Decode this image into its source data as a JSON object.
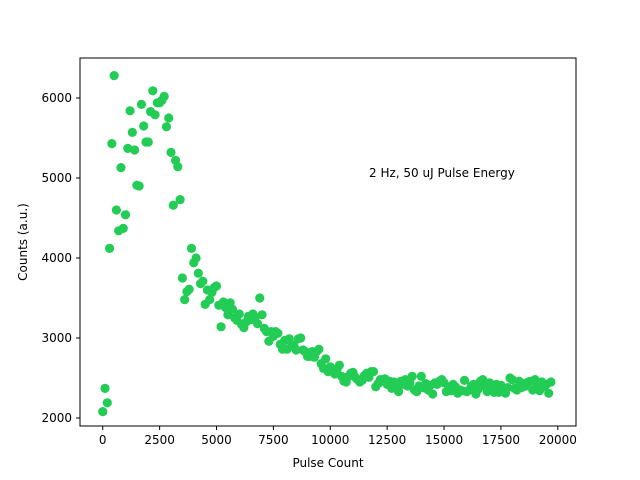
{
  "chart_data": {
    "type": "scatter",
    "title": "",
    "xlabel": "Pulse Count",
    "ylabel": "Counts (a.u.)",
    "annotation": "2 Hz, 50 uJ Pulse Energy",
    "xlim": [
      -1000,
      20800
    ],
    "ylim": [
      1900,
      6500
    ],
    "xticks": [
      0,
      2500,
      5000,
      7500,
      10000,
      12500,
      15000,
      17500,
      20000
    ],
    "yticks": [
      2000,
      3000,
      4000,
      5000,
      6000
    ],
    "grid": false,
    "marker_color": "#22cc55",
    "points": [
      [
        0,
        2080
      ],
      [
        100,
        2370
      ],
      [
        200,
        2190
      ],
      [
        300,
        4120
      ],
      [
        400,
        5430
      ],
      [
        500,
        6280
      ],
      [
        600,
        4600
      ],
      [
        700,
        4340
      ],
      [
        800,
        5130
      ],
      [
        900,
        4370
      ],
      [
        1000,
        4540
      ],
      [
        1100,
        5370
      ],
      [
        1200,
        5840
      ],
      [
        1300,
        5570
      ],
      [
        1400,
        5350
      ],
      [
        1500,
        4910
      ],
      [
        1600,
        4900
      ],
      [
        1700,
        5920
      ],
      [
        1800,
        5650
      ],
      [
        1900,
        5450
      ],
      [
        2000,
        5450
      ],
      [
        2100,
        5830
      ],
      [
        2200,
        6090
      ],
      [
        2300,
        5790
      ],
      [
        2400,
        5940
      ],
      [
        2500,
        5940
      ],
      [
        2600,
        5970
      ],
      [
        2700,
        6020
      ],
      [
        2800,
        5640
      ],
      [
        2900,
        5750
      ],
      [
        3000,
        5320
      ],
      [
        3100,
        4660
      ],
      [
        3200,
        5220
      ],
      [
        3300,
        5140
      ],
      [
        3400,
        4730
      ],
      [
        3500,
        3750
      ],
      [
        3600,
        3480
      ],
      [
        3700,
        3580
      ],
      [
        3800,
        3610
      ],
      [
        3900,
        4120
      ],
      [
        4000,
        3940
      ],
      [
        4100,
        4000
      ],
      [
        4200,
        3810
      ],
      [
        4300,
        3680
      ],
      [
        4400,
        3710
      ],
      [
        4500,
        3420
      ],
      [
        4600,
        3600
      ],
      [
        4700,
        3480
      ],
      [
        4800,
        3570
      ],
      [
        4900,
        3630
      ],
      [
        5000,
        3650
      ],
      [
        5100,
        3410
      ],
      [
        5200,
        3140
      ],
      [
        5300,
        3450
      ],
      [
        5400,
        3380
      ],
      [
        5500,
        3290
      ],
      [
        5600,
        3440
      ],
      [
        5700,
        3360
      ],
      [
        5800,
        3250
      ],
      [
        5900,
        3220
      ],
      [
        6000,
        3300
      ],
      [
        6100,
        3170
      ],
      [
        6200,
        3130
      ],
      [
        6300,
        3200
      ],
      [
        6400,
        3270
      ],
      [
        6500,
        3230
      ],
      [
        6600,
        3300
      ],
      [
        6700,
        3260
      ],
      [
        6800,
        3180
      ],
      [
        6900,
        3500
      ],
      [
        7000,
        3290
      ],
      [
        7100,
        3120
      ],
      [
        7200,
        3080
      ],
      [
        7300,
        2960
      ],
      [
        7400,
        3080
      ],
      [
        7500,
        3020
      ],
      [
        7600,
        3080
      ],
      [
        7700,
        3060
      ],
      [
        7800,
        2920
      ],
      [
        7900,
        2860
      ],
      [
        8000,
        2970
      ],
      [
        8100,
        2860
      ],
      [
        8200,
        2990
      ],
      [
        8300,
        2900
      ],
      [
        8400,
        2910
      ],
      [
        8500,
        2850
      ],
      [
        8600,
        2990
      ],
      [
        8700,
        3000
      ],
      [
        8800,
        2850
      ],
      [
        8900,
        2830
      ],
      [
        9000,
        2770
      ],
      [
        9100,
        2770
      ],
      [
        9200,
        2830
      ],
      [
        9300,
        2760
      ],
      [
        9400,
        2830
      ],
      [
        9500,
        2860
      ],
      [
        9600,
        2680
      ],
      [
        9700,
        2620
      ],
      [
        9800,
        2740
      ],
      [
        9900,
        2580
      ],
      [
        10000,
        2640
      ],
      [
        10100,
        2590
      ],
      [
        10200,
        2550
      ],
      [
        10300,
        2610
      ],
      [
        10400,
        2660
      ],
      [
        10500,
        2520
      ],
      [
        10600,
        2460
      ],
      [
        10700,
        2450
      ],
      [
        10800,
        2520
      ],
      [
        10900,
        2560
      ],
      [
        11000,
        2570
      ],
      [
        11100,
        2510
      ],
      [
        11200,
        2480
      ],
      [
        11300,
        2450
      ],
      [
        11400,
        2470
      ],
      [
        11500,
        2530
      ],
      [
        11600,
        2560
      ],
      [
        11700,
        2510
      ],
      [
        11800,
        2580
      ],
      [
        11900,
        2580
      ],
      [
        12000,
        2390
      ],
      [
        12100,
        2430
      ],
      [
        12200,
        2480
      ],
      [
        12300,
        2460
      ],
      [
        12400,
        2490
      ],
      [
        12500,
        2420
      ],
      [
        12600,
        2460
      ],
      [
        12700,
        2370
      ],
      [
        12800,
        2450
      ],
      [
        12900,
        2400
      ],
      [
        13000,
        2330
      ],
      [
        13100,
        2460
      ],
      [
        13200,
        2420
      ],
      [
        13300,
        2480
      ],
      [
        13400,
        2400
      ],
      [
        13500,
        2440
      ],
      [
        13600,
        2520
      ],
      [
        13700,
        2350
      ],
      [
        13800,
        2330
      ],
      [
        13900,
        2400
      ],
      [
        14000,
        2520
      ],
      [
        14100,
        2380
      ],
      [
        14200,
        2430
      ],
      [
        14300,
        2350
      ],
      [
        14400,
        2410
      ],
      [
        14500,
        2300
      ],
      [
        14600,
        2440
      ],
      [
        14700,
        2420
      ],
      [
        14800,
        2460
      ],
      [
        14900,
        2480
      ],
      [
        15000,
        2440
      ],
      [
        15100,
        2330
      ],
      [
        15200,
        2390
      ],
      [
        15300,
        2340
      ],
      [
        15400,
        2420
      ],
      [
        15500,
        2390
      ],
      [
        15600,
        2310
      ],
      [
        15700,
        2350
      ],
      [
        15800,
        2340
      ],
      [
        15900,
        2470
      ],
      [
        16000,
        2330
      ],
      [
        16100,
        2350
      ],
      [
        16200,
        2400
      ],
      [
        16300,
        2420
      ],
      [
        16400,
        2300
      ],
      [
        16500,
        2360
      ],
      [
        16600,
        2460
      ],
      [
        16700,
        2480
      ],
      [
        16800,
        2400
      ],
      [
        16900,
        2330
      ],
      [
        17000,
        2440
      ],
      [
        17100,
        2360
      ],
      [
        17200,
        2320
      ],
      [
        17300,
        2420
      ],
      [
        17400,
        2320
      ],
      [
        17500,
        2410
      ],
      [
        17600,
        2360
      ],
      [
        17700,
        2310
      ],
      [
        17800,
        2380
      ],
      [
        17900,
        2500
      ],
      [
        18000,
        2480
      ],
      [
        18100,
        2370
      ],
      [
        18200,
        2350
      ],
      [
        18300,
        2460
      ],
      [
        18400,
        2380
      ],
      [
        18500,
        2430
      ],
      [
        18600,
        2400
      ],
      [
        18700,
        2450
      ],
      [
        18800,
        2460
      ],
      [
        18900,
        2350
      ],
      [
        19000,
        2480
      ],
      [
        19100,
        2390
      ],
      [
        19200,
        2340
      ],
      [
        19300,
        2450
      ],
      [
        19400,
        2390
      ],
      [
        19500,
        2420
      ],
      [
        19600,
        2310
      ],
      [
        19700,
        2450
      ]
    ]
  }
}
